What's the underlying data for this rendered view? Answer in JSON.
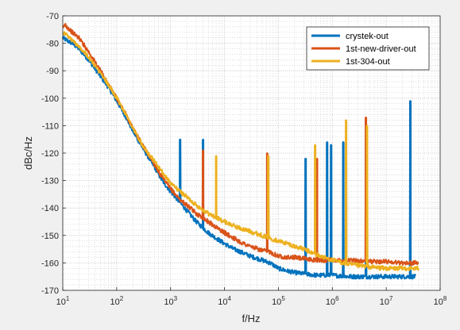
{
  "chart_data": {
    "type": "line",
    "title": "",
    "xlabel": "f/Hz",
    "ylabel": "dBc/Hz",
    "x_scale": "log",
    "xlim": [
      10,
      100000000
    ],
    "ylim": [
      -170,
      -70
    ],
    "x_tick_values": [
      10,
      100,
      1000,
      10000,
      100000,
      1000000,
      10000000,
      100000000
    ],
    "x_tick_labels": [
      {
        "base": "10",
        "exp": "1"
      },
      {
        "base": "10",
        "exp": "2"
      },
      {
        "base": "10",
        "exp": "3"
      },
      {
        "base": "10",
        "exp": "4"
      },
      {
        "base": "10",
        "exp": "5"
      },
      {
        "base": "10",
        "exp": "6"
      },
      {
        "base": "10",
        "exp": "7"
      },
      {
        "base": "10",
        "exp": "8"
      }
    ],
    "y_ticks": [
      -70,
      -80,
      -90,
      -100,
      -110,
      -120,
      -130,
      -140,
      -150,
      -160,
      -170
    ],
    "grid": true,
    "minor_grid": true,
    "legend_position": "top-right",
    "series": [
      {
        "name": "crystek-out",
        "color": "#0072bd",
        "points": [
          [
            10,
            -78
          ],
          [
            12,
            -79
          ],
          [
            15,
            -80
          ],
          [
            20,
            -82
          ],
          [
            30,
            -86
          ],
          [
            50,
            -92
          ],
          [
            70,
            -96
          ],
          [
            100,
            -101
          ],
          [
            150,
            -107
          ],
          [
            200,
            -112
          ],
          [
            300,
            -118
          ],
          [
            500,
            -125
          ],
          [
            700,
            -130
          ],
          [
            1000,
            -134
          ],
          [
            1500,
            -138
          ],
          [
            2000,
            -141
          ],
          [
            3000,
            -145
          ],
          [
            5000,
            -149
          ],
          [
            7000,
            -151
          ],
          [
            10000,
            -153
          ],
          [
            15000,
            -155
          ],
          [
            20000,
            -156
          ],
          [
            30000,
            -157.5
          ],
          [
            50000,
            -159
          ],
          [
            70000,
            -160
          ],
          [
            100000,
            -162
          ],
          [
            150000,
            -163
          ],
          [
            200000,
            -163.5
          ],
          [
            300000,
            -164
          ],
          [
            500000,
            -164.5
          ],
          [
            1000000,
            -164.5
          ],
          [
            2000000,
            -165
          ],
          [
            5000000,
            -165
          ],
          [
            10000000,
            -165
          ],
          [
            20000000,
            -165
          ],
          [
            35000000,
            -165
          ]
        ],
        "spurs": [
          {
            "f": 1500,
            "level": -115
          },
          {
            "f": 4000,
            "level": -115
          },
          {
            "f": 320000,
            "level": -122
          },
          {
            "f": 800000,
            "level": -116
          },
          {
            "f": 950000,
            "level": -117
          },
          {
            "f": 1600000,
            "level": -116
          },
          {
            "f": 4200000,
            "level": -116
          },
          {
            "f": 28000000,
            "level": -101
          }
        ]
      },
      {
        "name": "1st-new-driver-out",
        "color": "#d95319",
        "points": [
          [
            10,
            -75
          ],
          [
            11,
            -73
          ],
          [
            12,
            -74
          ],
          [
            15,
            -76
          ],
          [
            20,
            -78
          ],
          [
            30,
            -83
          ],
          [
            50,
            -90
          ],
          [
            70,
            -95
          ],
          [
            100,
            -100
          ],
          [
            150,
            -106
          ],
          [
            200,
            -111
          ],
          [
            300,
            -117
          ],
          [
            500,
            -124
          ],
          [
            700,
            -129
          ],
          [
            1000,
            -133
          ],
          [
            1500,
            -137
          ],
          [
            2000,
            -139
          ],
          [
            3000,
            -142
          ],
          [
            5000,
            -145
          ],
          [
            7000,
            -147
          ],
          [
            10000,
            -149
          ],
          [
            15000,
            -151
          ],
          [
            20000,
            -152.5
          ],
          [
            30000,
            -154
          ],
          [
            50000,
            -155.5
          ],
          [
            70000,
            -156
          ],
          [
            100000,
            -157.5
          ],
          [
            150000,
            -158
          ],
          [
            200000,
            -158
          ],
          [
            300000,
            -158.5
          ],
          [
            500000,
            -159
          ],
          [
            1000000,
            -159
          ],
          [
            2000000,
            -159
          ],
          [
            5000000,
            -159.5
          ],
          [
            10000000,
            -159.5
          ],
          [
            20000000,
            -160
          ],
          [
            40000000,
            -160
          ]
        ],
        "spurs": [
          {
            "f": 4000,
            "level": -119
          },
          {
            "f": 62000,
            "level": -120
          },
          {
            "f": 520000,
            "level": -122
          },
          {
            "f": 4200000,
            "level": -107
          }
        ]
      },
      {
        "name": "1st-304-out",
        "color": "#edb120",
        "points": [
          [
            10,
            -76
          ],
          [
            12,
            -77
          ],
          [
            15,
            -79
          ],
          [
            20,
            -81
          ],
          [
            30,
            -85
          ],
          [
            50,
            -91
          ],
          [
            70,
            -95
          ],
          [
            100,
            -100
          ],
          [
            150,
            -106
          ],
          [
            200,
            -111
          ],
          [
            300,
            -117
          ],
          [
            500,
            -123
          ],
          [
            700,
            -127
          ],
          [
            1000,
            -131
          ],
          [
            1500,
            -134
          ],
          [
            2000,
            -136
          ],
          [
            3000,
            -139
          ],
          [
            5000,
            -142
          ],
          [
            7000,
            -143.5
          ],
          [
            10000,
            -145
          ],
          [
            15000,
            -146.5
          ],
          [
            20000,
            -147.5
          ],
          [
            30000,
            -148.5
          ],
          [
            50000,
            -150
          ],
          [
            70000,
            -151
          ],
          [
            100000,
            -152
          ],
          [
            150000,
            -153
          ],
          [
            200000,
            -154
          ],
          [
            300000,
            -155
          ],
          [
            500000,
            -157
          ],
          [
            700000,
            -158
          ],
          [
            1000000,
            -159
          ],
          [
            2000000,
            -160.5
          ],
          [
            5000000,
            -161.5
          ],
          [
            10000000,
            -162
          ],
          [
            20000000,
            -162
          ],
          [
            40000000,
            -162
          ]
        ],
        "spurs": [
          {
            "f": 7000,
            "level": -121
          },
          {
            "f": 65000,
            "level": -121
          },
          {
            "f": 480000,
            "level": -117
          },
          {
            "f": 1800000,
            "level": -108
          },
          {
            "f": 4400000,
            "level": -110
          }
        ]
      }
    ]
  }
}
